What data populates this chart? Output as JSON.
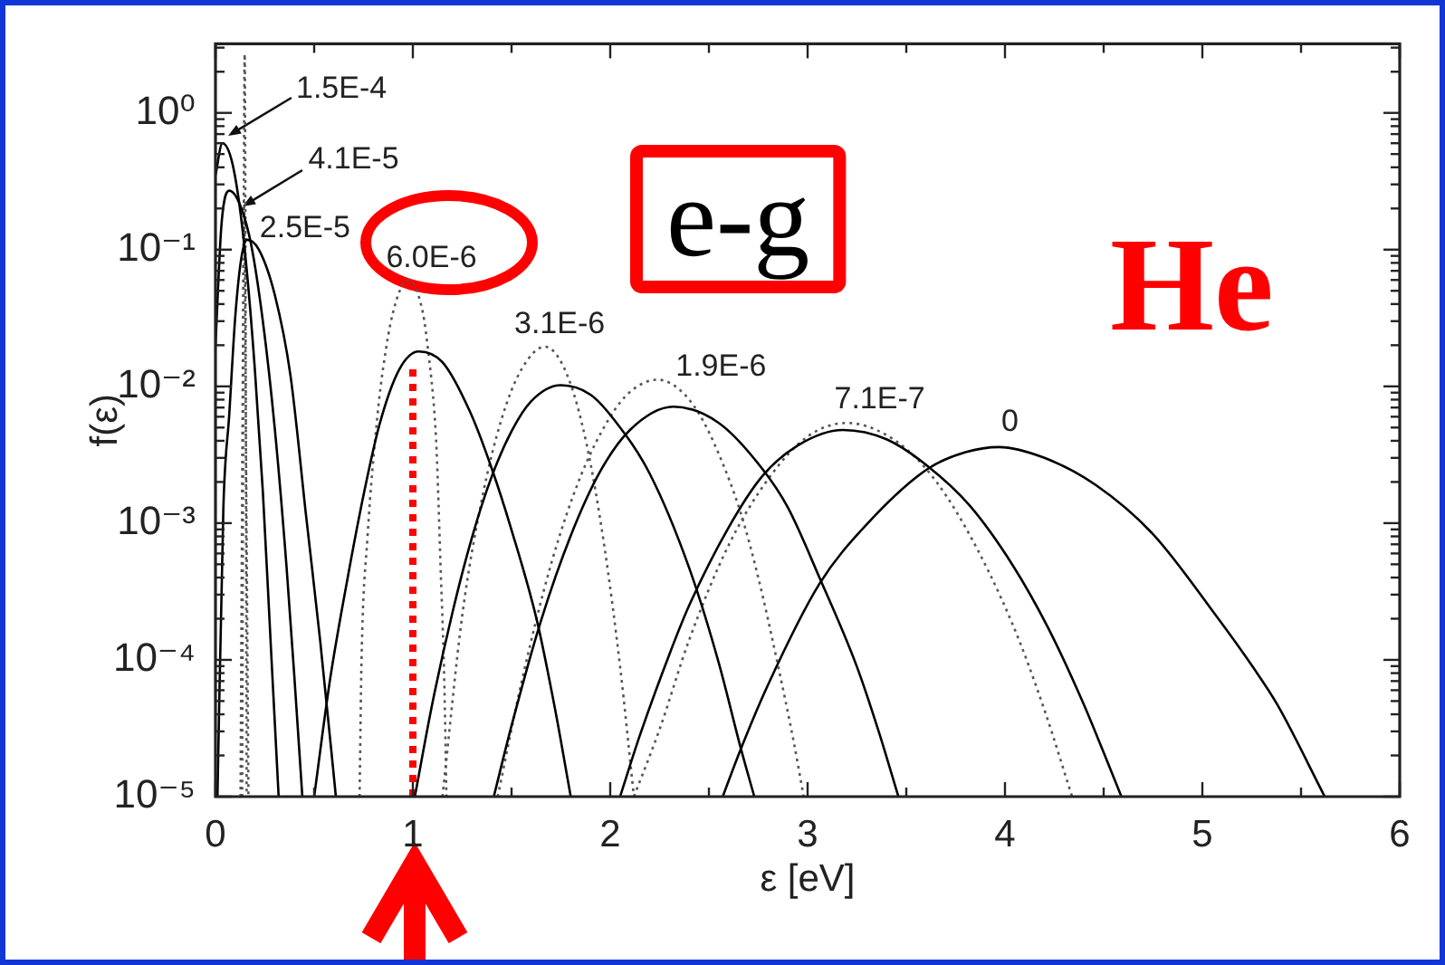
{
  "chart_data": {
    "type": "line",
    "xlabel": "ε [eV]",
    "ylabel": "f(ε)",
    "log": true,
    "marker": "none",
    "line_style": "solid",
    "xlim": [
      0,
      6
    ],
    "ylim": [
      1e-05,
      3.2
    ],
    "xticks": [
      0,
      {
        "value": 0.5,
        "label": null
      },
      1,
      {
        "value": 1.5,
        "label": null
      },
      2,
      {
        "value": 2.5,
        "label": null
      },
      3,
      {
        "value": 3.5,
        "label": null
      },
      4,
      {
        "value": 4.5,
        "label": null
      },
      5,
      {
        "value": 5.5,
        "label": null
      },
      6
    ],
    "yticks": [
      {
        "value": 1e-05,
        "label": "10⁻⁵"
      },
      {
        "value": 2e-05,
        "label": null
      },
      {
        "value": 3e-05,
        "label": null
      },
      {
        "value": 4e-05,
        "label": null
      },
      {
        "value": 5e-05,
        "label": null
      },
      {
        "value": 6e-05,
        "label": null
      },
      {
        "value": 7e-05,
        "label": null
      },
      {
        "value": 8e-05,
        "label": null
      },
      {
        "value": 9e-05,
        "label": null
      },
      {
        "value": 0.0001,
        "label": "10⁻⁴"
      },
      {
        "value": 0.0002,
        "label": null
      },
      {
        "value": 0.0003,
        "label": null
      },
      {
        "value": 0.0004,
        "label": null
      },
      {
        "value": 0.0005,
        "label": null
      },
      {
        "value": 0.0006,
        "label": null
      },
      {
        "value": 0.0007,
        "label": null
      },
      {
        "value": 0.0008,
        "label": null
      },
      {
        "value": 0.0009,
        "label": null
      },
      {
        "value": 0.001,
        "label": "10⁻³"
      },
      {
        "value": 0.002,
        "label": null
      },
      {
        "value": 0.003,
        "label": null
      },
      {
        "value": 0.004,
        "label": null
      },
      {
        "value": 0.005,
        "label": null
      },
      {
        "value": 0.006,
        "label": null
      },
      {
        "value": 0.007,
        "label": null
      },
      {
        "value": 0.008,
        "label": null
      },
      {
        "value": 0.009,
        "label": null
      },
      {
        "value": 0.01,
        "label": "10⁻²"
      },
      {
        "value": 0.02,
        "label": null
      },
      {
        "value": 0.03,
        "label": null
      },
      {
        "value": 0.04,
        "label": null
      },
      {
        "value": 0.05,
        "label": null
      },
      {
        "value": 0.06,
        "label": null
      },
      {
        "value": 0.07,
        "label": null
      },
      {
        "value": 0.08,
        "label": null
      },
      {
        "value": 0.09,
        "label": null
      },
      {
        "value": 0.1,
        "label": "10⁻¹"
      },
      {
        "value": 0.2,
        "label": null
      },
      {
        "value": 0.3,
        "label": null
      },
      {
        "value": 0.4,
        "label": null
      },
      {
        "value": 0.5,
        "label": null
      },
      {
        "value": 0.6,
        "label": null
      },
      {
        "value": 0.7,
        "label": null
      },
      {
        "value": 0.8,
        "label": null
      },
      {
        "value": 0.9,
        "label": null
      },
      {
        "value": 1,
        "label": "10⁰"
      },
      {
        "value": 2,
        "label": null
      },
      {
        "value": 3,
        "label": null
      }
    ],
    "annotations": [
      {
        "text": "1.5E-4",
        "x": 0.06,
        "y": 0.67
      },
      {
        "text": "4.1E-5",
        "x": 0.14,
        "y": 0.21
      },
      {
        "text": "2.5E-5",
        "x": 0.16,
        "y": 0.118
      },
      {
        "text": "6.0E-6",
        "x": 0.975,
        "y": 0.06
      },
      {
        "text": "3.1E-6",
        "x": 1.67,
        "y": 0.0195
      },
      {
        "text": "1.9E-6",
        "x": 2.24,
        "y": 0.0112
      },
      {
        "text": "7.1E-7",
        "x": 3.2,
        "y": 0.0054
      },
      {
        "text": "0",
        "x": 3.97,
        "y": 0.0036
      },
      "e-g",
      "He"
    ],
    "series": [
      {
        "color": "#000000",
        "x": [
          0,
          0.035,
          0.08,
          0.12,
          0.16,
          0.2,
          0.24,
          0.28,
          0.32
        ],
        "values": [
          0.35,
          0.6,
          0.46,
          0.22,
          0.067,
          0.013,
          0.0017,
          0.00013,
          1e-05
        ]
      },
      {
        "color": "#000000",
        "x": [
          0,
          0.03,
          0.07,
          0.12,
          0.18,
          0.24,
          0.3,
          0.36,
          0.4,
          0.44
        ],
        "values": [
          0.02,
          0.15,
          0.27,
          0.22,
          0.11,
          0.03,
          0.005,
          0.00048,
          7.4e-05,
          1e-05
        ]
      },
      {
        "color": "#000000",
        "x": [
          0.01,
          0.04,
          0.07,
          0.1,
          0.13,
          0.16,
          0.22,
          0.3,
          0.38,
          0.46,
          0.53,
          0.61
        ],
        "values": [
          1e-05,
          0.0013,
          0.0063,
          0.032,
          0.085,
          0.118,
          0.1,
          0.047,
          0.012,
          0.0011,
          0.00014,
          1e-05
        ]
      },
      {
        "color": "#000000",
        "x": [
          0.5,
          0.58,
          0.67,
          0.75,
          0.83,
          0.93,
          1.03,
          1.15,
          1.29,
          1.4,
          1.5,
          1.63,
          1.72,
          1.8
        ],
        "values": [
          1e-05,
          7.1e-05,
          0.0004,
          0.0016,
          0.0052,
          0.0132,
          0.018,
          0.015,
          0.0065,
          0.0025,
          0.00089,
          0.00019,
          4.4e-05,
          1e-05
        ]
      },
      {
        "color": "#000000",
        "x": [
          1.01,
          1.1,
          1.2,
          1.3,
          1.4,
          1.5,
          1.6,
          1.75,
          1.9,
          2.02,
          2.2,
          2.4,
          2.55,
          2.66,
          2.73
        ],
        "values": [
          1e-05,
          4.9e-05,
          0.00022,
          0.00079,
          0.0022,
          0.0047,
          0.0078,
          0.0102,
          0.0087,
          0.0057,
          0.0023,
          0.00047,
          9.5e-05,
          2.3e-05,
          1e-05
        ]
      },
      {
        "color": "#000000",
        "x": [
          1.41,
          1.5,
          1.65,
          1.8,
          1.95,
          2.1,
          2.32,
          2.55,
          2.77,
          2.9,
          3.06,
          3.25,
          3.36,
          3.46
        ],
        "values": [
          1e-05,
          3.3e-05,
          0.000195,
          0.00081,
          0.0024,
          0.0048,
          0.0071,
          0.0054,
          0.0025,
          0.0013,
          0.0004,
          8.9e-05,
          3e-05,
          1e-05
        ]
      },
      {
        "color": "#000000",
        "x": [
          2.05,
          2.15,
          2.3,
          2.4,
          2.6,
          2.77,
          2.95,
          3.18,
          3.4,
          3.61,
          3.82,
          4.04,
          4.22,
          4.4,
          4.5,
          4.59
        ],
        "values": [
          1e-05,
          2.8e-05,
          0.00011,
          0.00025,
          0.00093,
          0.0022,
          0.0037,
          0.0048,
          0.0041,
          0.0026,
          0.00135,
          0.00049,
          0.00017,
          4.7e-05,
          2.1e-05,
          1e-05
        ]
      },
      {
        "color": "#000000",
        "x": [
          2.57,
          2.66,
          2.8,
          3.06,
          3.3,
          3.61,
          3.8,
          3.97,
          4.2,
          4.46,
          4.75,
          5.07,
          5.26,
          5.38,
          5.62
        ],
        "values": [
          1e-05,
          2.2e-05,
          6.6e-05,
          0.00036,
          0.00098,
          0.0025,
          0.0033,
          0.0036,
          0.003,
          0.0019,
          0.00083,
          0.00021,
          8.7e-05,
          4.7e-05,
          1e-05
        ]
      },
      {
        "color": "#555555",
        "line_style": "dotted",
        "x": [
          0.135,
          0.148,
          0.158
        ],
        "values": [
          1e-05,
          2.7,
          1e-05
        ]
      },
      {
        "color": "#555555",
        "line_style": "dotted",
        "x": [
          0.127,
          0.136,
          0.145,
          0.155,
          0.167
        ],
        "values": [
          1e-05,
          0.003,
          0.23,
          0.003,
          1e-05
        ]
      },
      {
        "color": "#555555",
        "line_style": "dotted",
        "x": [
          0.73,
          0.74,
          0.77,
          0.82,
          0.85,
          0.9,
          0.975,
          1.05,
          1.08,
          1.11,
          1.12,
          1.14,
          1.16,
          1.17
        ],
        "values": [
          1e-05,
          0.0001,
          0.00078,
          0.006,
          0.0138,
          0.035,
          0.06,
          0.035,
          0.017,
          0.0062,
          0.0035,
          0.0005,
          6.3e-05,
          1e-05
        ]
      },
      {
        "color": "#555555",
        "line_style": "dotted",
        "x": [
          1.15,
          1.25,
          1.35,
          1.45,
          1.55,
          1.67,
          1.78,
          1.88,
          1.97,
          2.05,
          2.12
        ],
        "values": [
          1e-05,
          0.00021,
          0.0015,
          0.0058,
          0.0133,
          0.0195,
          0.0123,
          0.0038,
          0.00068,
          8.9e-05,
          1e-05
        ]
      },
      {
        "color": "#555555",
        "line_style": "dotted",
        "x": [
          1.43,
          1.55,
          1.7,
          1.85,
          2.0,
          2.1,
          2.24,
          2.35,
          2.45,
          2.55,
          2.66,
          2.75,
          2.85,
          2.93,
          2.98
        ],
        "values": [
          1e-05,
          6.8e-05,
          0.0005,
          0.0022,
          0.006,
          0.0091,
          0.0112,
          0.0095,
          0.0063,
          0.0032,
          0.0012,
          0.0004,
          9.1e-05,
          2.5e-05,
          1e-05
        ]
      },
      {
        "color": "#555555",
        "line_style": "dotted",
        "x": [
          2.12,
          2.25,
          2.4,
          2.6,
          2.8,
          3.0,
          3.2,
          3.4,
          3.6,
          3.8,
          4.04,
          4.2,
          4.34
        ],
        "values": [
          1e-05,
          3.1e-05,
          0.00014,
          0.00069,
          0.0021,
          0.0043,
          0.0054,
          0.0044,
          0.0025,
          0.00093,
          0.00018,
          4.3e-05,
          1e-05
        ]
      },
      {
        "color": "#ff0000",
        "line_style": "dotted",
        "x": [
          1,
          1
        ],
        "values": [
          1e-05,
          0.014
        ]
      }
    ]
  }
}
